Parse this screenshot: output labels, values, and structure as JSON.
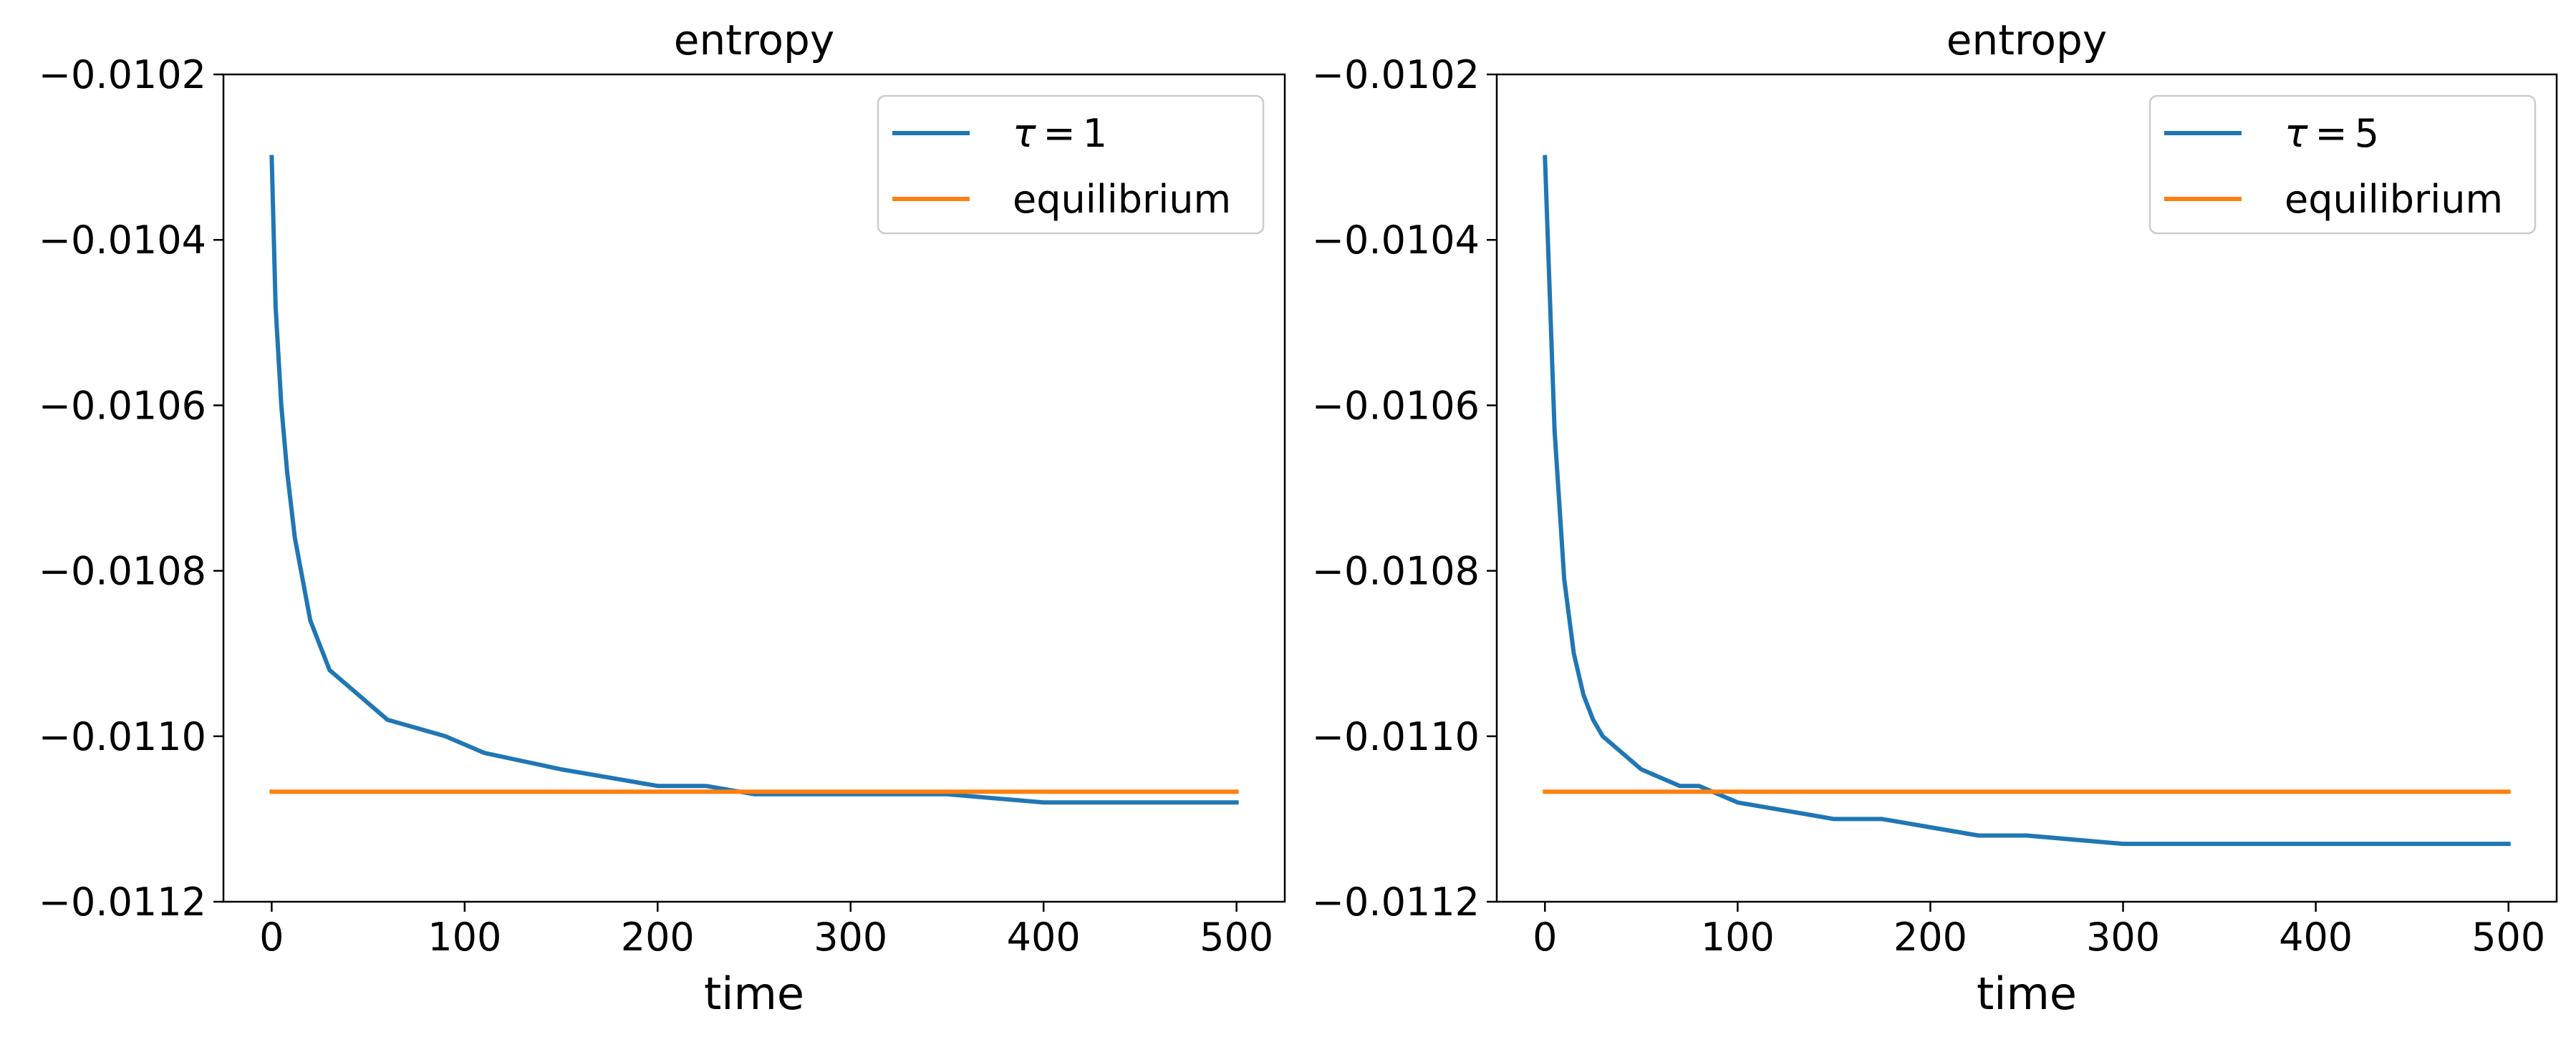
{
  "chart_data": [
    {
      "type": "line",
      "title": "entropy",
      "xlabel": "time",
      "ylabel": "",
      "xlim": [
        -25,
        525
      ],
      "ylim": [
        -0.0112,
        -0.0102
      ],
      "xticks": [
        0,
        100,
        200,
        300,
        400,
        500
      ],
      "xtick_labels": [
        "0",
        "100",
        "200",
        "300",
        "400",
        "500"
      ],
      "yticks": [
        -0.0112,
        -0.011,
        -0.0108,
        -0.0106,
        -0.0104,
        -0.0102
      ],
      "ytick_labels": [
        "−0.0112",
        "−0.0110",
        "−0.0108",
        "−0.0106",
        "−0.0104",
        "−0.0102"
      ],
      "grid": false,
      "legend": "top-right",
      "series": [
        {
          "name_math": "τ",
          "name_eq": "=",
          "name_val": "1",
          "color": "#1f77b4",
          "x": [
            0,
            2,
            5,
            8,
            12,
            16,
            20,
            25,
            30,
            40,
            50,
            60,
            75,
            90,
            110,
            130,
            150,
            175,
            200,
            225,
            250,
            275,
            300,
            350,
            400,
            450,
            500
          ],
          "y": [
            -0.0103,
            -0.01048,
            -0.0106,
            -0.01068,
            -0.01076,
            -0.01081,
            -0.01086,
            -0.01089,
            -0.01092,
            -0.01094,
            -0.01096,
            -0.01098,
            -0.01099,
            -0.011,
            -0.01102,
            -0.01103,
            -0.01104,
            -0.01105,
            -0.01106,
            -0.01106,
            -0.01107,
            -0.01107,
            -0.01107,
            -0.01107,
            -0.01108,
            -0.01108,
            -0.01108
          ]
        },
        {
          "name": "equilibrium",
          "color": "#ff7f0e",
          "x": [
            0,
            500
          ],
          "y": [
            -0.011067,
            -0.011067
          ]
        }
      ]
    },
    {
      "type": "line",
      "title": "entropy",
      "xlabel": "time",
      "ylabel": "",
      "xlim": [
        -25,
        525
      ],
      "ylim": [
        -0.0112,
        -0.0102
      ],
      "xticks": [
        0,
        100,
        200,
        300,
        400,
        500
      ],
      "xtick_labels": [
        "0",
        "100",
        "200",
        "300",
        "400",
        "500"
      ],
      "yticks": [
        -0.0112,
        -0.011,
        -0.0108,
        -0.0106,
        -0.0104,
        -0.0102
      ],
      "ytick_labels": [
        "−0.0112",
        "−0.0110",
        "−0.0108",
        "−0.0106",
        "−0.0104",
        "−0.0102"
      ],
      "grid": false,
      "legend": "top-right",
      "series": [
        {
          "name_math": "τ",
          "name_eq": "=",
          "name_val": "5",
          "color": "#1f77b4",
          "x": [
            0,
            5,
            10,
            15,
            20,
            25,
            30,
            35,
            40,
            50,
            60,
            70,
            80,
            100,
            125,
            150,
            175,
            200,
            225,
            250,
            300,
            350,
            400,
            450,
            500
          ],
          "y": [
            -0.0103,
            -0.01063,
            -0.01081,
            -0.0109,
            -0.01095,
            -0.01098,
            -0.011,
            -0.01101,
            -0.01102,
            -0.01104,
            -0.01105,
            -0.01106,
            -0.01106,
            -0.01108,
            -0.01109,
            -0.0111,
            -0.0111,
            -0.01111,
            -0.01112,
            -0.01112,
            -0.01113,
            -0.01113,
            -0.01113,
            -0.01113,
            -0.01113
          ]
        },
        {
          "name": "equilibrium",
          "color": "#ff7f0e",
          "x": [
            0,
            500
          ],
          "y": [
            -0.011067,
            -0.011067
          ]
        }
      ]
    }
  ]
}
